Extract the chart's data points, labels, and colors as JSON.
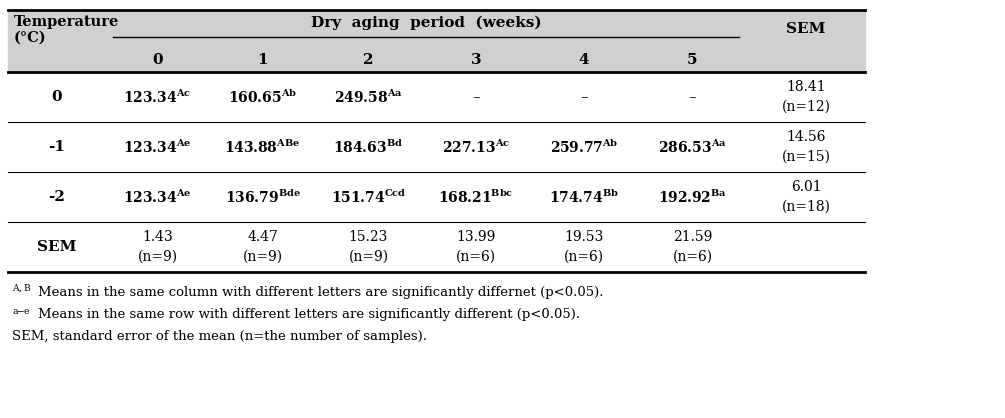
{
  "rows": [
    {
      "temp": "0",
      "values": [
        "123.34",
        "160.65",
        "249.58",
        "-",
        "-",
        "-"
      ],
      "superscripts": [
        "Ac",
        "Ab",
        "Aa",
        "",
        "",
        ""
      ],
      "sem": "18.41\n(n=12)"
    },
    {
      "temp": "-1",
      "values": [
        "123.34",
        "143.88",
        "184.63",
        "227.13",
        "259.77",
        "286.53"
      ],
      "superscripts": [
        "Ae",
        "ABe",
        "Bd",
        "Ac",
        "Ab",
        "Aa"
      ],
      "sem": "14.56\n(n=15)"
    },
    {
      "temp": "-2",
      "values": [
        "123.34",
        "136.79",
        "151.74",
        "168.21",
        "174.74",
        "192.92"
      ],
      "superscripts": [
        "Ae",
        "Bde",
        "Ccd",
        "Bbc",
        "Bb",
        "Ba"
      ],
      "sem": "6.01\n(n=18)"
    }
  ],
  "sem_row_values": [
    "1.43\n(n=9)",
    "4.47\n(n=9)",
    "15.23\n(n=9)",
    "13.99\n(n=6)",
    "19.53\n(n=6)",
    "21.59\n(n=6)"
  ],
  "week_labels": [
    "0",
    "1",
    "2",
    "3",
    "4",
    "5"
  ],
  "header_bg": "#d0d0d0",
  "footnote1_sup": "A,B",
  "footnote1_text": "Means in the same column with different letters are significantly differnet (p<0.05).",
  "footnote2_sup": "a-e",
  "footnote2_text": "Means in the same row with different letters are significantly different (p<0.05).",
  "footnote3": "SEM, standard error of the mean (n=the number of samples)."
}
